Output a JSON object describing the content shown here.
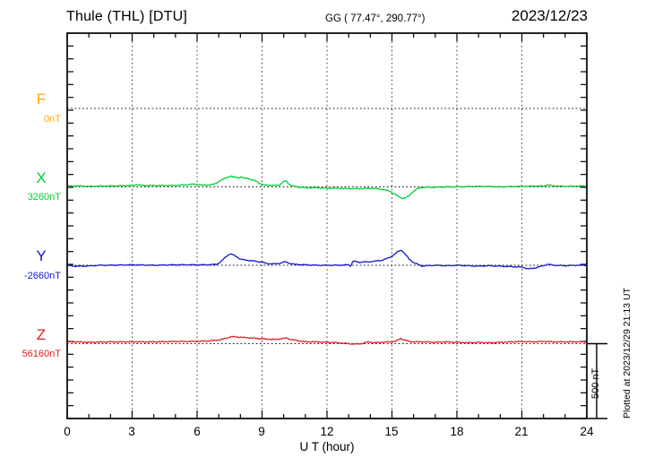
{
  "header": {
    "station_title": "Thule (THL)  [DTU]",
    "coordinates": "GG ( 77.47°, 290.77°)",
    "date": "2023/12/23"
  },
  "axes": {
    "xlabel": "U T (hour)",
    "x_ticks": [
      "0",
      "3",
      "6",
      "9",
      "12",
      "15",
      "18",
      "21",
      "24"
    ]
  },
  "channels": [
    {
      "name": "F",
      "baseline_label": "0nT",
      "color": "#FFAA00"
    },
    {
      "name": "X",
      "baseline_label": "3260nT",
      "color": "#00CE3A"
    },
    {
      "name": "Y",
      "baseline_label": "-2660nT",
      "color": "#1616CE"
    },
    {
      "name": "Z",
      "baseline_label": "56160nT",
      "color": "#E02020"
    }
  ],
  "scale_bar": {
    "label": "500 nT",
    "nT": 500
  },
  "footer_note": "Plotted at 2023/12/29 21:13 UT",
  "chart_data": {
    "type": "line",
    "title": "Thule (THL) [DTU] magnetogram",
    "date": "2023/12/23",
    "xlabel": "U T (hour)",
    "x_range": [
      0,
      24
    ],
    "x_major_tick_step_hours": 3,
    "grid": "dotted vertical every 3 h, dotted horizontal baseline per channel",
    "scale_bar_nT": 500,
    "series": [
      {
        "name": "F",
        "baseline_nT": 0,
        "color": "#FFAA00",
        "points": []
      },
      {
        "name": "X",
        "baseline_nT": 3260,
        "color": "#00CE3A",
        "points": [
          [
            0,
            6
          ],
          [
            0.5,
            6
          ],
          [
            1,
            3
          ],
          [
            2,
            6
          ],
          [
            3,
            9
          ],
          [
            3.2,
            15
          ],
          [
            3.5,
            9
          ],
          [
            4,
            9
          ],
          [
            5,
            9
          ],
          [
            5.9,
            18
          ],
          [
            6.2,
            12
          ],
          [
            6.5,
            12
          ],
          [
            6.8,
            18
          ],
          [
            7.0,
            35
          ],
          [
            7.3,
            59
          ],
          [
            7.55,
            71
          ],
          [
            7.7,
            65
          ],
          [
            7.9,
            62
          ],
          [
            8.05,
            65
          ],
          [
            8.2,
            56
          ],
          [
            8.35,
            59
          ],
          [
            8.5,
            47
          ],
          [
            8.7,
            41
          ],
          [
            8.9,
            21
          ],
          [
            9.1,
            12
          ],
          [
            9.3,
            12
          ],
          [
            9.5,
            9
          ],
          [
            9.8,
            12
          ],
          [
            10.0,
            35
          ],
          [
            10.1,
            41
          ],
          [
            10.25,
            18
          ],
          [
            10.4,
            6
          ],
          [
            10.6,
            0
          ],
          [
            11,
            -6
          ],
          [
            11.5,
            -6
          ],
          [
            12,
            -9
          ],
          [
            12.5,
            -9
          ],
          [
            13,
            -12
          ],
          [
            13.5,
            -12
          ],
          [
            14,
            -9
          ],
          [
            14.3,
            -12
          ],
          [
            14.6,
            -18
          ],
          [
            14.9,
            -29
          ],
          [
            15.1,
            -47
          ],
          [
            15.25,
            -59
          ],
          [
            15.45,
            -76
          ],
          [
            15.6,
            -74
          ],
          [
            15.75,
            -65
          ],
          [
            15.9,
            -41
          ],
          [
            16.1,
            -18
          ],
          [
            16.3,
            -6
          ],
          [
            16.5,
            -3
          ],
          [
            17,
            -3
          ],
          [
            17.5,
            0
          ],
          [
            18,
            0
          ],
          [
            19,
            3
          ],
          [
            20,
            0
          ],
          [
            21,
            3
          ],
          [
            22,
            6
          ],
          [
            22.2,
            12
          ],
          [
            22.5,
            6
          ],
          [
            23,
            3
          ],
          [
            24,
            6
          ]
        ]
      },
      {
        "name": "Y",
        "baseline_nT": -2660,
        "color": "#1616CE",
        "points": [
          [
            0,
            0
          ],
          [
            0.3,
            -6
          ],
          [
            0.8,
            -6
          ],
          [
            1.5,
            0
          ],
          [
            2,
            0
          ],
          [
            3,
            3
          ],
          [
            4,
            0
          ],
          [
            5,
            3
          ],
          [
            6,
            3
          ],
          [
            6.5,
            3
          ],
          [
            6.9,
            6
          ],
          [
            7.1,
            24
          ],
          [
            7.3,
            53
          ],
          [
            7.5,
            76
          ],
          [
            7.65,
            71
          ],
          [
            7.8,
            59
          ],
          [
            8.0,
            41
          ],
          [
            8.2,
            35
          ],
          [
            8.4,
            32
          ],
          [
            8.6,
            29
          ],
          [
            8.8,
            24
          ],
          [
            9.0,
            21
          ],
          [
            9.2,
            12
          ],
          [
            9.5,
            9
          ],
          [
            9.8,
            12
          ],
          [
            10.05,
            24
          ],
          [
            10.3,
            12
          ],
          [
            10.5,
            6
          ],
          [
            11,
            3
          ],
          [
            11.5,
            0
          ],
          [
            12,
            0
          ],
          [
            12.5,
            0
          ],
          [
            13.0,
            3
          ],
          [
            13.1,
            -6
          ],
          [
            13.2,
            29
          ],
          [
            13.35,
            24
          ],
          [
            13.5,
            18
          ],
          [
            13.7,
            24
          ],
          [
            13.9,
            21
          ],
          [
            14.1,
            26
          ],
          [
            14.3,
            29
          ],
          [
            14.5,
            32
          ],
          [
            14.7,
            41
          ],
          [
            14.9,
            53
          ],
          [
            15.1,
            71
          ],
          [
            15.3,
            94
          ],
          [
            15.45,
            100
          ],
          [
            15.6,
            76
          ],
          [
            15.8,
            41
          ],
          [
            16.0,
            18
          ],
          [
            16.2,
            6
          ],
          [
            16.4,
            -6
          ],
          [
            16.6,
            -3
          ],
          [
            17,
            0
          ],
          [
            17.5,
            -3
          ],
          [
            18,
            0
          ],
          [
            18.5,
            -3
          ],
          [
            19,
            -6
          ],
          [
            19.5,
            -3
          ],
          [
            20,
            -6
          ],
          [
            21,
            -12
          ],
          [
            21.3,
            -24
          ],
          [
            21.6,
            -18
          ],
          [
            22.2,
            6
          ],
          [
            22.5,
            0
          ],
          [
            23,
            -3
          ],
          [
            23.5,
            0
          ],
          [
            24,
            0
          ]
        ]
      },
      {
        "name": "Z",
        "baseline_nT": 56160,
        "color": "#E02020",
        "points": [
          [
            0,
            12
          ],
          [
            0.5,
            12
          ],
          [
            1,
            9
          ],
          [
            2,
            12
          ],
          [
            3,
            12
          ],
          [
            4,
            12
          ],
          [
            5,
            15
          ],
          [
            6,
            15
          ],
          [
            6.5,
            18
          ],
          [
            7.0,
            24
          ],
          [
            7.3,
            35
          ],
          [
            7.6,
            47
          ],
          [
            7.9,
            44
          ],
          [
            8.2,
            41
          ],
          [
            8.5,
            38
          ],
          [
            8.8,
            35
          ],
          [
            9.1,
            32
          ],
          [
            9.4,
            29
          ],
          [
            9.7,
            29
          ],
          [
            10.0,
            35
          ],
          [
            10.15,
            38
          ],
          [
            10.3,
            29
          ],
          [
            10.6,
            21
          ],
          [
            11,
            12
          ],
          [
            11.5,
            12
          ],
          [
            12,
            9
          ],
          [
            12.5,
            6
          ],
          [
            13,
            0
          ],
          [
            13.3,
            -3
          ],
          [
            13.6,
            0
          ],
          [
            13.9,
            12
          ],
          [
            14.2,
            6
          ],
          [
            14.5,
            9
          ],
          [
            15.0,
            12
          ],
          [
            15.2,
            18
          ],
          [
            15.4,
            35
          ],
          [
            15.6,
            24
          ],
          [
            15.8,
            15
          ],
          [
            16,
            12
          ],
          [
            16.5,
            12
          ],
          [
            17,
            9
          ],
          [
            17.5,
            12
          ],
          [
            18,
            9
          ],
          [
            18.5,
            6
          ],
          [
            19,
            9
          ],
          [
            19.5,
            6
          ],
          [
            20,
            9
          ],
          [
            20.5,
            12
          ],
          [
            21,
            15
          ],
          [
            21.5,
            12
          ],
          [
            22,
            15
          ],
          [
            22.5,
            12
          ],
          [
            23,
            12
          ],
          [
            23.5,
            12
          ],
          [
            24,
            12
          ]
        ]
      }
    ]
  }
}
